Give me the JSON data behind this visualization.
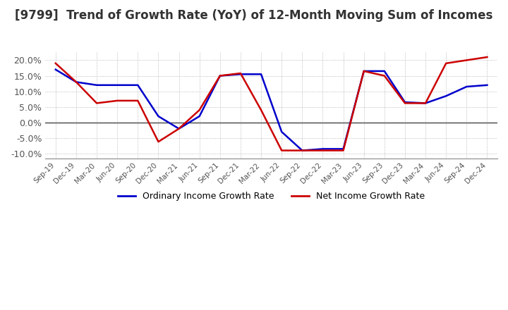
{
  "title": "[9799]  Trend of Growth Rate (YoY) of 12-Month Moving Sum of Incomes",
  "title_fontsize": 12,
  "ylim": [
    -0.115,
    0.225
  ],
  "yticks": [
    -0.1,
    -0.05,
    0.0,
    0.05,
    0.1,
    0.15,
    0.2
  ],
  "background_color": "#ffffff",
  "plot_bg_color": "#ffffff",
  "grid_color": "#aaaaaa",
  "legend_labels": [
    "Ordinary Income Growth Rate",
    "Net Income Growth Rate"
  ],
  "legend_colors": [
    "#0000cc",
    "#cc0000"
  ],
  "x_labels": [
    "Sep-19",
    "Dec-19",
    "Mar-20",
    "Jun-20",
    "Sep-20",
    "Dec-20",
    "Mar-21",
    "Jun-21",
    "Sep-21",
    "Dec-21",
    "Mar-22",
    "Jun-22",
    "Sep-22",
    "Dec-22",
    "Mar-23",
    "Jun-23",
    "Sep-23",
    "Dec-23",
    "Mar-24",
    "Jun-24",
    "Sep-24",
    "Dec-24"
  ],
  "ordinary_income": [
    0.17,
    0.13,
    0.12,
    0.12,
    0.12,
    0.02,
    -0.02,
    0.02,
    0.15,
    0.155,
    0.155,
    -0.03,
    -0.09,
    -0.085,
    -0.085,
    0.165,
    0.165,
    0.065,
    0.062,
    0.085,
    0.115,
    0.12
  ],
  "net_income": [
    0.19,
    0.13,
    0.062,
    0.07,
    0.07,
    -0.062,
    -0.02,
    0.04,
    0.15,
    0.158,
    0.04,
    -0.09,
    -0.09,
    -0.09,
    -0.09,
    0.165,
    0.15,
    0.062,
    0.062,
    0.19,
    0.2,
    0.21
  ]
}
